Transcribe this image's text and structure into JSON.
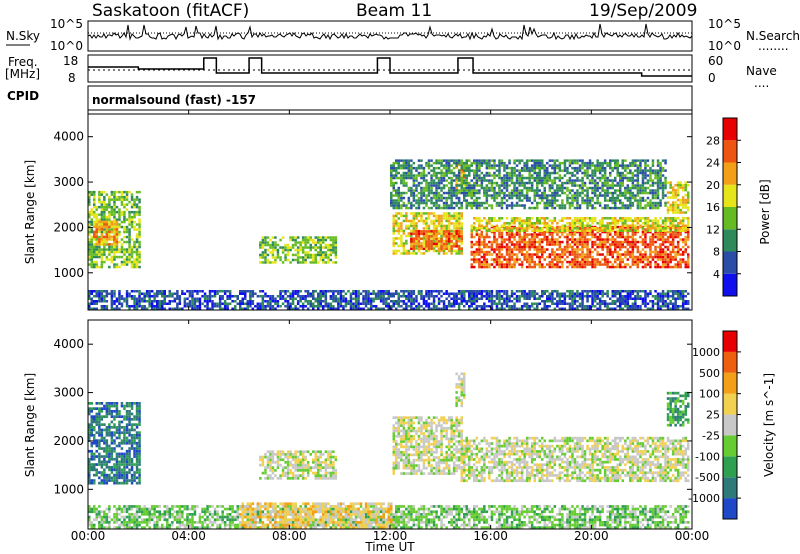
{
  "header": {
    "radar": "Saskatoon (fitACF)",
    "beam": "Beam 11",
    "date": "19/Sep/2009"
  },
  "top_panel": {
    "left_label": "N.Sky",
    "left_ticks": [
      "10^5",
      "10^0"
    ],
    "right_ticks": [
      "10^5",
      "10^0"
    ],
    "right_label": "N.Search",
    "right_key": "........"
  },
  "freq_panel": {
    "left_label_1": "Freq.",
    "left_label_2": "[MHz]",
    "left_ticks": [
      "18",
      "8"
    ],
    "right_ticks": [
      "60",
      "0"
    ],
    "right_label": "Nave",
    "right_key": "...."
  },
  "cpid_panel": {
    "label": "CPID",
    "text": "normalsound (fast) -157"
  },
  "chart_data": [
    {
      "type": "heatmap",
      "name": "power",
      "xlabel": "",
      "ylabel": "Slant Range [km]",
      "yticks": [
        "1000",
        "2000",
        "3000",
        "4000"
      ],
      "ylim": [
        180,
        4500
      ],
      "xlim_hours": [
        0,
        24
      ],
      "colorbar": {
        "label": "Power [dB]",
        "ticks": [
          "4",
          "8",
          "12",
          "16",
          "20",
          "24",
          "28"
        ],
        "colors": [
          "#1010ee",
          "#2a4ea8",
          "#2e8a5a",
          "#66bb22",
          "#e5e51a",
          "#f2a018",
          "#ee5510",
          "#e80000"
        ]
      },
      "regions": [
        {
          "t0": 0.0,
          "t1": 2.1,
          "r0": 1100,
          "r1": 2800,
          "level": 3
        },
        {
          "t0": 0.2,
          "t1": 1.2,
          "r0": 1600,
          "r1": 2100,
          "level": 5
        },
        {
          "t0": 6.8,
          "t1": 9.8,
          "r0": 1200,
          "r1": 1800,
          "level": 3
        },
        {
          "t0": 12.1,
          "t1": 14.8,
          "r0": 1400,
          "r1": 2300,
          "level": 4
        },
        {
          "t0": 12.8,
          "t1": 14.8,
          "r0": 1500,
          "r1": 1900,
          "level": 6
        },
        {
          "t0": 14.6,
          "t1": 14.9,
          "r0": 2800,
          "r1": 3400,
          "level": 5
        },
        {
          "t0": 15.2,
          "t1": 23.9,
          "r0": 1100,
          "r1": 2000,
          "level": 6
        },
        {
          "t0": 15.2,
          "t1": 23.9,
          "r0": 1900,
          "r1": 2200,
          "level": 4
        },
        {
          "t0": 12.0,
          "t1": 23.0,
          "r0": 2400,
          "r1": 3450,
          "level": 2
        },
        {
          "t0": 23.0,
          "t1": 23.9,
          "r0": 2300,
          "r1": 3000,
          "level": 4
        },
        {
          "t0": 0.0,
          "t1": 23.9,
          "r0": 180,
          "r1": 600,
          "level": 1
        }
      ]
    },
    {
      "type": "heatmap",
      "name": "velocity",
      "xlabel": "Time UT",
      "ylabel": "Slant Range [km]",
      "yticks": [
        "1000",
        "2000",
        "3000",
        "4000"
      ],
      "ylim": [
        180,
        4500
      ],
      "xticks": [
        "00:00",
        "04:00",
        "08:00",
        "12:00",
        "16:00",
        "20:00",
        "00:00"
      ],
      "colorbar": {
        "label": "Velocity [m s^-1]",
        "ticks": [
          "1000",
          "500",
          "100",
          "25",
          "-25",
          "-100",
          "-500",
          "-1000"
        ],
        "colors": [
          "#1f48c8",
          "#2e7a7a",
          "#2ea050",
          "#66cc33",
          "#c8c8c8",
          "#f2d050",
          "#f2a018",
          "#ee6010",
          "#e80000"
        ]
      },
      "regions": [
        {
          "t0": 0.0,
          "t1": 2.1,
          "r0": 1100,
          "r1": 2800,
          "level": 1
        },
        {
          "t0": 6.8,
          "t1": 9.8,
          "r0": 1200,
          "r1": 1800,
          "level": 4
        },
        {
          "t0": 12.1,
          "t1": 14.8,
          "r0": 1300,
          "r1": 2500,
          "level": 4
        },
        {
          "t0": 14.8,
          "t1": 23.9,
          "r0": 1150,
          "r1": 2050,
          "level": 4
        },
        {
          "t0": 14.6,
          "t1": 14.9,
          "r0": 2700,
          "r1": 3400,
          "level": 4
        },
        {
          "t0": 23.0,
          "t1": 23.9,
          "r0": 2300,
          "r1": 3000,
          "level": 2
        },
        {
          "t0": 0.0,
          "t1": 23.9,
          "r0": 180,
          "r1": 650,
          "level": 3
        },
        {
          "t0": 6.0,
          "t1": 12.0,
          "r0": 180,
          "r1": 700,
          "level": 5
        }
      ]
    }
  ]
}
